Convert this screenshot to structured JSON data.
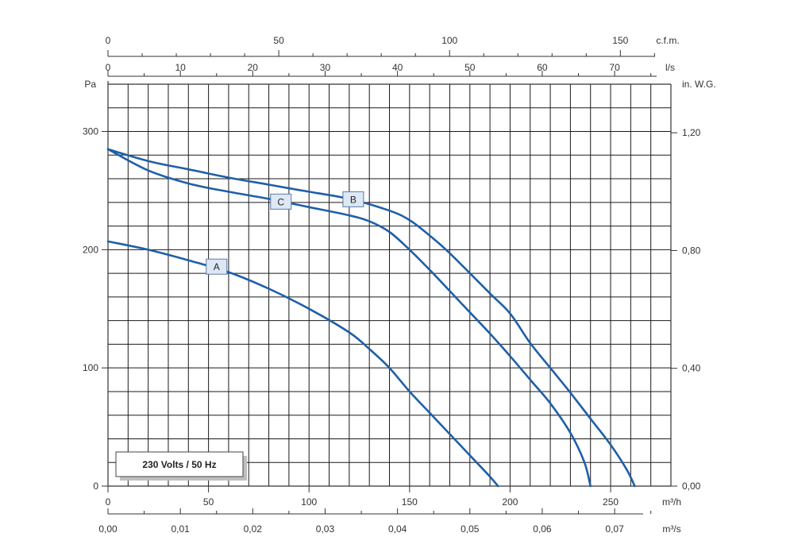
{
  "chart_data": {
    "type": "line",
    "title": "",
    "note": "230 Volts / 50 Hz",
    "x_axis": {
      "unit": "m³/h",
      "range": [
        0,
        280
      ],
      "ticks": [
        {
          "value": 0,
          "label": "0"
        },
        {
          "value": 50,
          "label": "50"
        },
        {
          "value": 100,
          "label": "100"
        },
        {
          "value": 150,
          "label": "150"
        },
        {
          "value": 200,
          "label": "200"
        },
        {
          "value": 250,
          "label": "250"
        }
      ]
    },
    "x_axis_m3s": {
      "unit": "m³/s",
      "ticks": [
        {
          "value": 0.0,
          "label": "0,00"
        },
        {
          "value": 0.01,
          "label": "0,01"
        },
        {
          "value": 0.02,
          "label": "0,02"
        },
        {
          "value": 0.03,
          "label": "0,03"
        },
        {
          "value": 0.04,
          "label": "0,04"
        },
        {
          "value": 0.05,
          "label": "0,05"
        },
        {
          "value": 0.06,
          "label": "0,06"
        },
        {
          "value": 0.07,
          "label": "0,07"
        }
      ]
    },
    "x_axis_ls": {
      "unit": "l/s",
      "ticks": [
        {
          "value": 0,
          "label": "0"
        },
        {
          "value": 10,
          "label": "10"
        },
        {
          "value": 20,
          "label": "20"
        },
        {
          "value": 30,
          "label": "30"
        },
        {
          "value": 40,
          "label": "40"
        },
        {
          "value": 50,
          "label": "50"
        },
        {
          "value": 60,
          "label": "60"
        },
        {
          "value": 70,
          "label": "70"
        }
      ]
    },
    "x_axis_cfm": {
      "unit": "c.f.m.",
      "ticks": [
        {
          "value": 0,
          "label": "0"
        },
        {
          "value": 50,
          "label": "50"
        },
        {
          "value": 100,
          "label": "100"
        },
        {
          "value": 150,
          "label": "150"
        }
      ]
    },
    "y_axis": {
      "unit": "Pa",
      "range": [
        0,
        340
      ],
      "ticks": [
        {
          "value": 0,
          "label": "0"
        },
        {
          "value": 100,
          "label": "100"
        },
        {
          "value": 200,
          "label": "200"
        },
        {
          "value": 300,
          "label": "300"
        }
      ]
    },
    "y_axis_right": {
      "unit": "in. W.G.",
      "ticks": [
        {
          "value": 0,
          "label": "0,00"
        },
        {
          "value": 0.4,
          "label": "0,40"
        },
        {
          "value": 0.8,
          "label": "0,80"
        },
        {
          "value": 1.2,
          "label": "1,20"
        }
      ]
    },
    "grid": true,
    "series": [
      {
        "name": "A",
        "color": "#1f5fa8",
        "label_at": [
          54,
          186
        ],
        "points": [
          [
            0,
            207
          ],
          [
            20,
            200
          ],
          [
            40,
            191
          ],
          [
            60,
            181
          ],
          [
            80,
            167
          ],
          [
            100,
            150
          ],
          [
            120,
            130
          ],
          [
            130,
            116
          ],
          [
            140,
            100
          ],
          [
            150,
            80
          ],
          [
            160,
            62
          ],
          [
            170,
            44
          ],
          [
            180,
            26
          ],
          [
            190,
            8
          ],
          [
            194,
            0
          ]
        ]
      },
      {
        "name": "B",
        "color": "#1f5fa8",
        "label_at": [
          122,
          243
        ],
        "points": [
          [
            0,
            285
          ],
          [
            20,
            275
          ],
          [
            40,
            268
          ],
          [
            60,
            261
          ],
          [
            80,
            255
          ],
          [
            100,
            249
          ],
          [
            120,
            243
          ],
          [
            140,
            233
          ],
          [
            150,
            225
          ],
          [
            160,
            212
          ],
          [
            170,
            197
          ],
          [
            190,
            163
          ],
          [
            200,
            146
          ],
          [
            210,
            121
          ],
          [
            220,
            100
          ],
          [
            230,
            79
          ],
          [
            240,
            57
          ],
          [
            250,
            35
          ],
          [
            258,
            14
          ],
          [
            262,
            0
          ]
        ]
      },
      {
        "name": "C",
        "color": "#1f5fa8",
        "label_at": [
          86,
          241
        ],
        "points": [
          [
            0,
            285
          ],
          [
            20,
            267
          ],
          [
            40,
            256
          ],
          [
            60,
            249
          ],
          [
            80,
            243
          ],
          [
            100,
            236
          ],
          [
            120,
            229
          ],
          [
            130,
            224
          ],
          [
            140,
            215
          ],
          [
            150,
            200
          ],
          [
            160,
            183
          ],
          [
            170,
            165
          ],
          [
            180,
            147
          ],
          [
            190,
            129
          ],
          [
            200,
            110
          ],
          [
            210,
            90
          ],
          [
            220,
            70
          ],
          [
            230,
            45
          ],
          [
            237,
            20
          ],
          [
            240,
            0
          ]
        ]
      }
    ]
  }
}
